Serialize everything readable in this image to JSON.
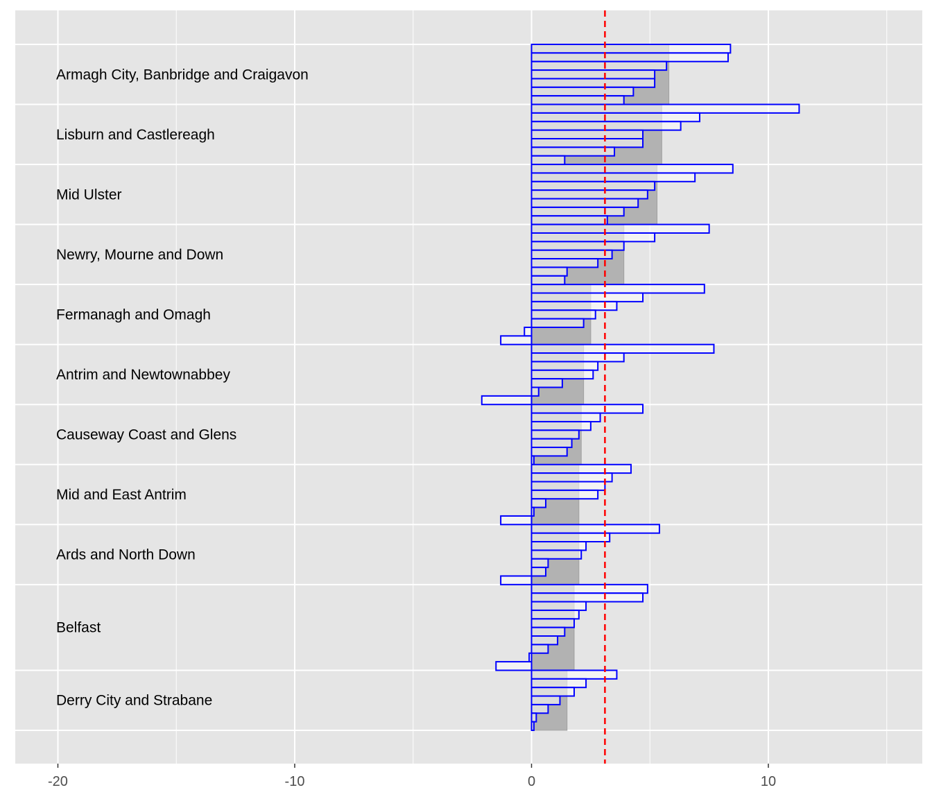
{
  "chart_data": {
    "type": "bar",
    "orientation": "horizontal",
    "xlim": [
      -21.8,
      16.5
    ],
    "x_ticks": [
      -20,
      -10,
      0,
      10
    ],
    "x_tick_labels": [
      "-20",
      "-10",
      "0",
      "10"
    ],
    "grid": true,
    "reference_line": {
      "x": 3.1,
      "style": "dashed",
      "color": "#ff0000"
    },
    "colors": {
      "panel": "#e5e5e5",
      "grid": "#ffffff",
      "group_bar": "#b2b2b2",
      "ward_bar_outline": "#0000ff"
    },
    "groups": [
      {
        "name": "Armagh City, Banbridge and Craigavon",
        "mean": 5.8,
        "values": [
          8.4,
          8.3,
          5.7,
          5.2,
          5.2,
          4.3,
          3.9
        ]
      },
      {
        "name": "Lisburn and Castlereagh",
        "mean": 5.5,
        "values": [
          11.3,
          7.1,
          6.3,
          4.7,
          4.7,
          3.5,
          1.4
        ]
      },
      {
        "name": "Mid Ulster",
        "mean": 5.3,
        "values": [
          8.5,
          6.9,
          5.2,
          4.9,
          4.5,
          3.9,
          3.2
        ]
      },
      {
        "name": "Newry, Mourne and Down",
        "mean": 3.9,
        "values": [
          7.5,
          5.2,
          3.9,
          3.4,
          2.8,
          1.5,
          1.4
        ]
      },
      {
        "name": "Fermanagh and Omagh",
        "mean": 2.5,
        "values": [
          7.3,
          4.7,
          3.6,
          2.7,
          2.2,
          -0.3,
          -1.3
        ]
      },
      {
        "name": "Antrim and Newtownabbey",
        "mean": 2.2,
        "values": [
          7.7,
          3.9,
          2.8,
          2.6,
          1.3,
          0.3,
          -2.1
        ]
      },
      {
        "name": "Causeway Coast and Glens",
        "mean": 2.1,
        "values": [
          4.7,
          2.9,
          2.5,
          2.0,
          1.7,
          1.5,
          0.1
        ]
      },
      {
        "name": "Mid and East Antrim",
        "mean": 2.0,
        "values": [
          4.2,
          3.4,
          3.1,
          2.8,
          0.6,
          0.1,
          -1.3
        ]
      },
      {
        "name": "Ards and North Down",
        "mean": 2.0,
        "values": [
          5.4,
          3.3,
          2.3,
          2.1,
          0.7,
          0.6,
          -1.3
        ]
      },
      {
        "name": "Belfast",
        "mean": 1.8,
        "values": [
          4.9,
          4.7,
          2.3,
          2.0,
          1.8,
          1.4,
          1.1,
          0.7,
          -0.1,
          -1.5
        ]
      },
      {
        "name": "Derry City and Strabane",
        "mean": 1.5,
        "values": [
          3.6,
          2.3,
          1.8,
          1.2,
          0.7,
          0.2,
          0.1
        ]
      }
    ]
  }
}
